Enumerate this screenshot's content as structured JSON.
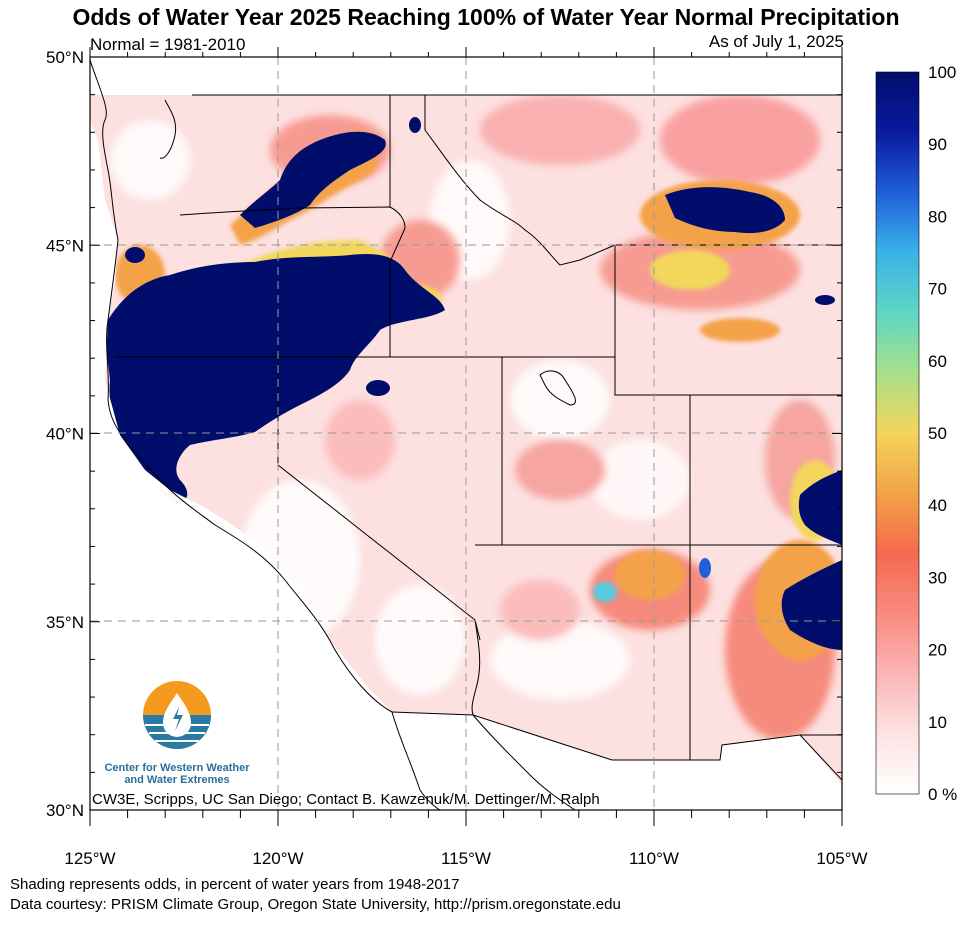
{
  "title": "Odds of Water Year 2025 Reaching 100% of Water Year Normal Precipitation",
  "normal_note": "Normal = 1981-2010",
  "as_of": "As of July 1, 2025",
  "lat_labels": [
    {
      "value": 50,
      "label": "50°N"
    },
    {
      "value": 45,
      "label": "45°N"
    },
    {
      "value": 40,
      "label": "40°N"
    },
    {
      "value": 35,
      "label": "35°N"
    },
    {
      "value": 30,
      "label": "30°N"
    }
  ],
  "lon_labels": [
    {
      "value": -125,
      "label": "125°W"
    },
    {
      "value": -120,
      "label": "120°W"
    },
    {
      "value": -115,
      "label": "115°W"
    },
    {
      "value": -110,
      "label": "110°W"
    },
    {
      "value": -105,
      "label": "105°W"
    }
  ],
  "colorbar": {
    "min_label": "0 %",
    "ticks": [
      "10",
      "20",
      "30",
      "40",
      "50",
      "60",
      "70",
      "80",
      "90",
      "100"
    ],
    "stops": [
      "#ffffff",
      "#fde3e3",
      "#fbb5b5",
      "#f88a80",
      "#f46a4e",
      "#f2a347",
      "#f5d45c",
      "#a7e08a",
      "#5fd6c2",
      "#3ab2e8",
      "#1f5fd8",
      "#0a1a9e",
      "#000d6b"
    ]
  },
  "logo": {
    "name_line1": "Center for Western Weather",
    "name_line2": "and Water Extremes",
    "colors": {
      "sun": "#f39a1f",
      "water": "#2a7ba3",
      "drop": "#ffffff"
    }
  },
  "credit": "CW3E, Scripps, UC San Diego; Contact B. Kawzenuk/M. Dettinger/M. Ralph",
  "footer": {
    "line1": "Shading represents odds, in percent of water years from 1948-2017",
    "line2": "Data courtesy: PRISM Climate Group, Oregon State University, http://prism.oregonstate.edu"
  },
  "map_colors": {
    "pale_pink": "#fde0e0",
    "pink": "#f9b0b0",
    "salmon": "#f58b7c",
    "orange": "#f4a24a",
    "yellow": "#f3d65c",
    "green": "#8fdc9a",
    "cyan": "#56cbe0",
    "blue": "#1f5fd8",
    "navy": "#000d6b"
  }
}
